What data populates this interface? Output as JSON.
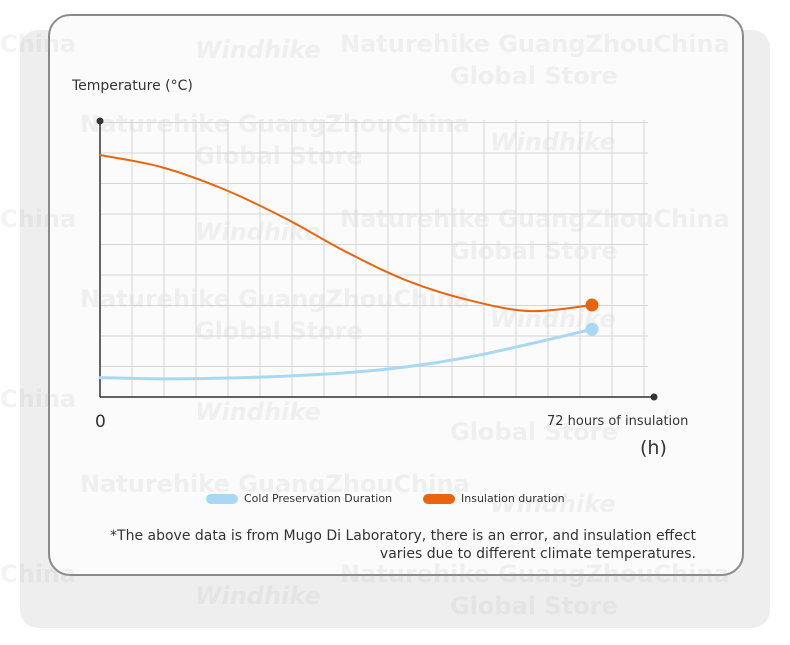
{
  "watermark": {
    "store": "Naturehike GuangZhouChina",
    "store_sub": "Global Store",
    "brand": "Windhike",
    "fragment": "China"
  },
  "colors": {
    "insulation": "#E8650E",
    "cold": "#A8D8F4",
    "axis": "#333333",
    "grid": "#D6D6D6"
  },
  "chart_data": {
    "type": "line",
    "title": "",
    "ylabel": "Temperature (°C)",
    "xlabel": "72 hours of insulation",
    "x_unit": "(h)",
    "origin_label": "0",
    "x": [
      0,
      9,
      18,
      27,
      36,
      45,
      54,
      63,
      72
    ],
    "xlim": [
      0,
      72
    ],
    "ylim": [
      0,
      100
    ],
    "grid": true,
    "legend_position": "bottom",
    "series": [
      {
        "name": "Cold Preservation Duration",
        "color": "#A8D8F4",
        "values": [
          8,
          7.5,
          7.8,
          8.6,
          10,
          12.5,
          16.5,
          22,
          28
        ],
        "end_marker": true
      },
      {
        "name": "Insulation duration",
        "color": "#E8650E",
        "values": [
          100,
          95,
          86,
          74,
          60,
          48,
          40,
          35.5,
          38
        ],
        "end_marker": true
      }
    ]
  },
  "legend": [
    {
      "label": "Cold Preservation Duration",
      "color": "#A8D8F4"
    },
    {
      "label": "Insulation duration",
      "color": "#E8650E"
    }
  ],
  "footnote": {
    "line1": "*The above data is from Mugo Di Laboratory, there is an error, and insulation effect",
    "line2": "varies due to different climate temperatures."
  }
}
